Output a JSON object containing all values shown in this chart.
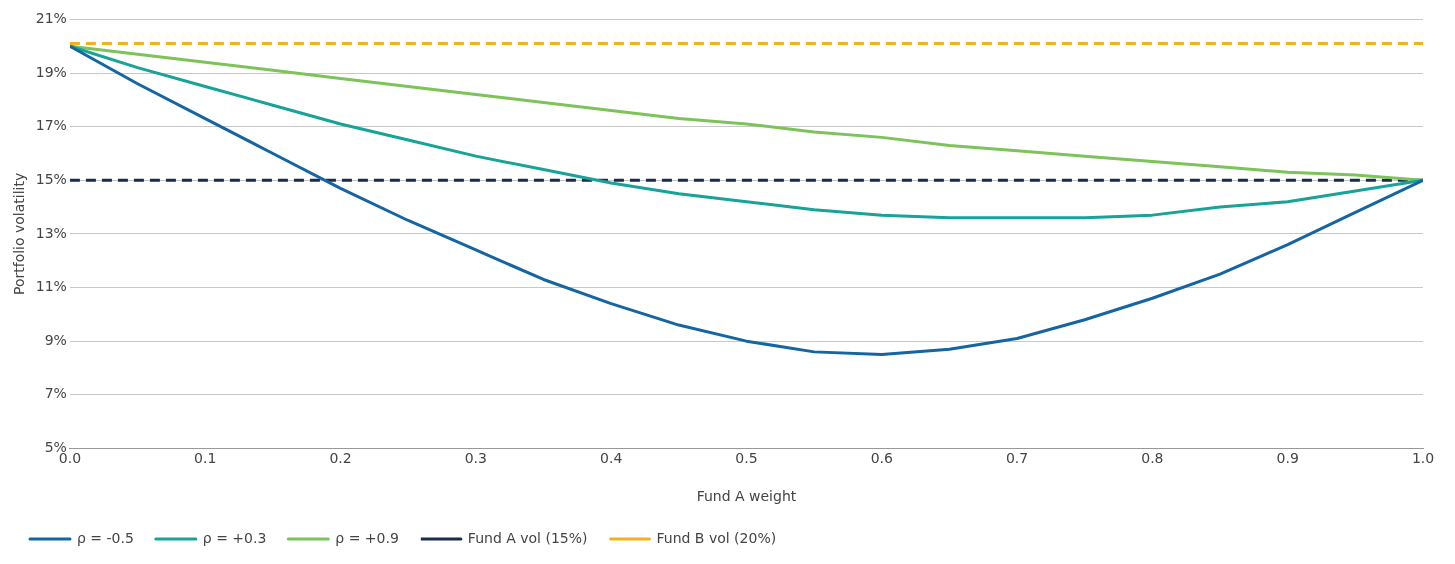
{
  "chart_data": {
    "type": "line",
    "xlabel": "Fund A weight",
    "ylabel": "Portfolio volatility",
    "x": [
      0,
      0.05,
      0.1,
      0.15,
      0.2,
      0.25,
      0.3,
      0.35,
      0.4,
      0.45,
      0.5,
      0.55,
      0.6,
      0.65,
      0.7,
      0.75,
      0.8,
      0.85,
      0.9,
      0.95,
      1
    ],
    "series": [
      {
        "name": "ρ = -0.5",
        "color": "#1565a3",
        "line_style": "solid",
        "values": [
          20,
          18.6,
          17.3,
          16.0,
          14.7,
          13.5,
          12.4,
          11.3,
          10.4,
          9.6,
          9.0,
          8.6,
          8.5,
          8.7,
          9.1,
          9.8,
          10.6,
          11.5,
          12.6,
          13.8,
          15
        ]
      },
      {
        "name": "ρ = +0.3",
        "color": "#17a398",
        "line_style": "solid",
        "values": [
          20,
          19.2,
          18.5,
          17.8,
          17.1,
          16.5,
          15.9,
          15.4,
          14.9,
          14.5,
          14.2,
          13.9,
          13.7,
          13.6,
          13.6,
          13.6,
          13.7,
          14.0,
          14.2,
          14.6,
          15
        ]
      },
      {
        "name": "ρ = +0.9",
        "color": "#7cc35a",
        "line_style": "solid",
        "values": [
          20,
          19.7,
          19.4,
          19.1,
          18.8,
          18.5,
          18.2,
          17.9,
          17.6,
          17.3,
          17.1,
          16.8,
          16.6,
          16.3,
          16.1,
          15.9,
          15.7,
          15.5,
          15.3,
          15.2,
          15
        ]
      },
      {
        "name": "Fund A vol (15%)",
        "color": "#1b2b4d",
        "line_style": "dashed",
        "values": [
          15,
          15,
          15,
          15,
          15,
          15,
          15,
          15,
          15,
          15,
          15,
          15,
          15,
          15,
          15,
          15,
          15,
          15,
          15,
          15,
          15
        ]
      },
      {
        "name": "Fund B vol (20%)",
        "color": "#f5b020",
        "line_style": "dashed",
        "values": [
          20.1,
          20.1,
          20.1,
          20.1,
          20.1,
          20.1,
          20.1,
          20.1,
          20.1,
          20.1,
          20.1,
          20.1,
          20.1,
          20.1,
          20.1,
          20.1,
          20.1,
          20.1,
          20.1,
          20.1,
          20.1
        ]
      }
    ],
    "xlim": [
      0,
      1
    ],
    "xticks": [
      {
        "value": 0,
        "label": "0.0"
      },
      {
        "value": 0.1,
        "label": "0.1"
      },
      {
        "value": 0.2,
        "label": "0.2"
      },
      {
        "value": 0.3,
        "label": "0.3"
      },
      {
        "value": 0.4,
        "label": "0.4"
      },
      {
        "value": 0.5,
        "label": "0.5"
      },
      {
        "value": 0.6,
        "label": "0.6"
      },
      {
        "value": 0.7,
        "label": "0.7"
      },
      {
        "value": 0.8,
        "label": "0.8"
      },
      {
        "value": 0.9,
        "label": "0.9"
      },
      {
        "value": 1,
        "label": "1.0"
      }
    ],
    "ylim": [
      5,
      21
    ],
    "yticks": [
      {
        "value": 5,
        "label": "5%"
      },
      {
        "value": 7,
        "label": "7%"
      },
      {
        "value": 9,
        "label": "9%"
      },
      {
        "value": 11,
        "label": "11%"
      },
      {
        "value": 13,
        "label": "13%"
      },
      {
        "value": 15,
        "label": "15%"
      },
      {
        "value": 17,
        "label": "17%"
      },
      {
        "value": 19,
        "label": "19%"
      },
      {
        "value": 21,
        "label": "21%"
      }
    ],
    "grid": "y",
    "legend": "bottom",
    "marker": "none"
  }
}
